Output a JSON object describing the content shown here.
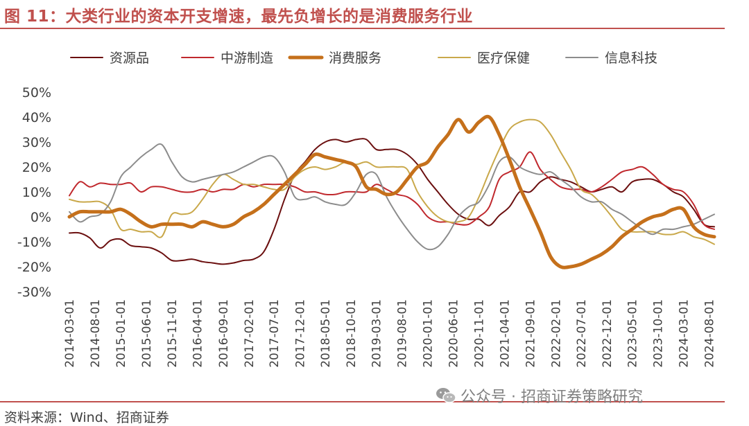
{
  "title": "图 11：大类行业的资本开支增速，最先负增长的是消费服务行业",
  "source": "资料来源：Wind、招商证券",
  "watermark": "公众号 · 招商证券策略研究",
  "chart_data": {
    "type": "line",
    "title": "",
    "xlabel": "",
    "ylabel": "",
    "ylim": [
      -30,
      50
    ],
    "yticks": [
      "50%",
      "40%",
      "30%",
      "20%",
      "10%",
      "0%",
      "-10%",
      "-20%",
      "-30%"
    ],
    "x_tick_labels": [
      "2014-03-01",
      "2014-08-01",
      "2015-01-01",
      "2015-06-01",
      "2015-11-01",
      "2016-04-01",
      "2016-09-01",
      "2017-02-01",
      "2017-07-01",
      "2017-12-01",
      "2018-05-01",
      "2018-10-01",
      "2019-03-01",
      "2019-08-01",
      "2020-01-01",
      "2020-06-01",
      "2020-11-01",
      "2021-04-01",
      "2021-09-01",
      "2022-02-01",
      "2022-07-01",
      "2022-12-01",
      "2023-05-01",
      "2023-10-01",
      "2024-03-01",
      "2024-08-01"
    ],
    "legend_position": "top",
    "grid": false,
    "x": [
      "2014-03-01",
      "2014-05-01",
      "2014-07-01",
      "2014-09-01",
      "2014-11-01",
      "2015-01-01",
      "2015-03-01",
      "2015-05-01",
      "2015-07-01",
      "2015-09-01",
      "2015-11-01",
      "2016-01-01",
      "2016-03-01",
      "2016-05-01",
      "2016-07-01",
      "2016-09-01",
      "2016-11-01",
      "2017-01-01",
      "2017-03-01",
      "2017-05-01",
      "2017-07-01",
      "2017-09-01",
      "2017-11-01",
      "2018-01-01",
      "2018-03-01",
      "2018-05-01",
      "2018-07-01",
      "2018-09-01",
      "2018-11-01",
      "2019-01-01",
      "2019-03-01",
      "2019-05-01",
      "2019-07-01",
      "2019-09-01",
      "2019-11-01",
      "2020-01-01",
      "2020-03-01",
      "2020-05-01",
      "2020-07-01",
      "2020-09-01",
      "2020-11-01",
      "2021-01-01",
      "2021-03-01",
      "2021-05-01",
      "2021-07-01",
      "2021-09-01",
      "2021-11-01",
      "2022-01-01",
      "2022-03-01",
      "2022-05-01",
      "2022-07-01",
      "2022-09-01",
      "2022-11-01",
      "2023-01-01",
      "2023-03-01",
      "2023-05-01",
      "2023-07-01",
      "2023-09-01",
      "2023-11-01",
      "2024-01-01",
      "2024-03-01",
      "2024-05-01",
      "2024-07-01",
      "2024-09-01"
    ],
    "series": [
      {
        "name": "资源品",
        "color": "#6b0f0f",
        "width": 2,
        "values": [
          -6.5,
          -6.5,
          -8.5,
          -12.5,
          -9.5,
          -9,
          -11.5,
          -12,
          -12.5,
          -14.5,
          -17.5,
          -17.5,
          -17,
          -18,
          -18.5,
          -19,
          -18.5,
          -17.5,
          -17,
          -14,
          -5,
          7,
          17,
          22,
          27,
          30,
          31,
          30,
          31,
          31,
          27,
          27,
          27,
          25,
          21,
          15,
          10,
          5,
          1,
          -1,
          -1,
          -3.5,
          0.5,
          4,
          10,
          10,
          14,
          16,
          15,
          14,
          12,
          10,
          11,
          12,
          10,
          14,
          15,
          15,
          13,
          10,
          8,
          3,
          -3,
          -4
        ]
      },
      {
        "name": "中游制造",
        "color": "#c0282d",
        "width": 2,
        "values": [
          8.5,
          14,
          12,
          13.5,
          13,
          13,
          13.5,
          10,
          12,
          12,
          11,
          10,
          10,
          11,
          10,
          11,
          11,
          13,
          12,
          13,
          13,
          13,
          12,
          10,
          10,
          9,
          9,
          10,
          10,
          10,
          13,
          11,
          9,
          8,
          5,
          0,
          -2,
          -2,
          -3,
          -3,
          0,
          4,
          15,
          18,
          20,
          26,
          19,
          15,
          12,
          11,
          11,
          10,
          12,
          15,
          18,
          19,
          20,
          17,
          13,
          11,
          10,
          5,
          -3,
          -5
        ]
      },
      {
        "name": "消费服务",
        "color": "#c5701b",
        "width": 5,
        "values": [
          0,
          2,
          2,
          2,
          2,
          3,
          1,
          -2,
          -4,
          -3,
          -3,
          -3,
          -4,
          -2,
          -3,
          -4,
          -3,
          0,
          2,
          5,
          9,
          13,
          17,
          21,
          25,
          24,
          23,
          22,
          20,
          12,
          11,
          9,
          10,
          15,
          20,
          22,
          28,
          33,
          39,
          34,
          38,
          40,
          33,
          23,
          12,
          3,
          -6,
          -16,
          -20,
          -20,
          -19,
          -17,
          -15,
          -12,
          -8,
          -5,
          -2,
          0,
          1,
          3,
          3,
          -4,
          -7,
          -8
        ]
      },
      {
        "name": "医疗保健",
        "color": "#c9a84a",
        "width": 2,
        "values": [
          7,
          6,
          6,
          6,
          3,
          -5,
          -5,
          -6,
          -6,
          -8,
          1,
          1,
          2,
          7,
          13,
          17,
          15,
          13,
          13,
          12,
          11,
          11,
          16,
          19,
          20,
          19,
          20,
          22,
          21,
          22,
          20,
          20,
          20,
          19,
          10,
          4,
          0,
          -2,
          -2,
          0,
          8,
          18,
          27,
          35,
          38,
          39,
          38,
          33,
          26,
          19,
          11,
          9,
          5,
          0,
          -5,
          -6,
          -6,
          -6,
          -7,
          -7,
          -6,
          -8,
          -9,
          -11
        ]
      },
      {
        "name": "信息科技",
        "color": "#8c8c8c",
        "width": 2,
        "values": [
          2,
          -2,
          0,
          1,
          6,
          16,
          20,
          24,
          27,
          29,
          22,
          16,
          14,
          15,
          16,
          17,
          18,
          20,
          22,
          24,
          24,
          18,
          8,
          7,
          8,
          6,
          5,
          5,
          10,
          17,
          17,
          8,
          1,
          -5,
          -10,
          -13,
          -12,
          -7,
          0,
          4,
          6,
          13,
          22,
          24,
          20,
          18,
          17,
          18,
          15,
          12,
          8,
          6,
          6,
          3,
          1,
          -2,
          -5,
          -7,
          -5,
          -5,
          -4,
          -3,
          -1,
          1
        ]
      }
    ]
  }
}
